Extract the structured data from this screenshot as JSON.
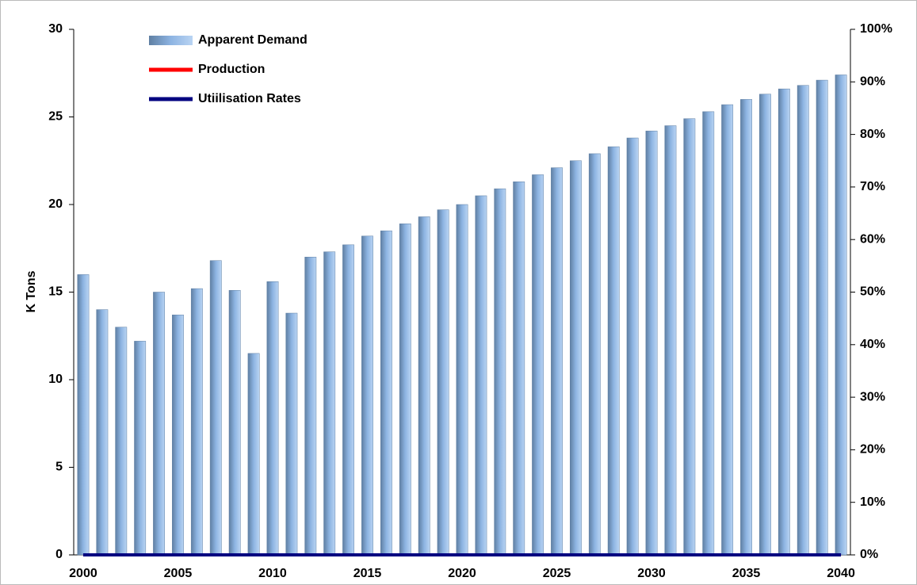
{
  "chart_data": {
    "type": "bar",
    "y_label": "K Tons",
    "x": [
      2000,
      2001,
      2002,
      2003,
      2004,
      2005,
      2006,
      2007,
      2008,
      2009,
      2010,
      2011,
      2012,
      2013,
      2014,
      2015,
      2016,
      2017,
      2018,
      2019,
      2020,
      2021,
      2022,
      2023,
      2024,
      2025,
      2026,
      2027,
      2028,
      2029,
      2030,
      2031,
      2032,
      2033,
      2034,
      2035,
      2036,
      2037,
      2038,
      2039,
      2040
    ],
    "xlim": [
      1999.5,
      2040.5
    ],
    "xticks": [
      2000,
      2005,
      2010,
      2015,
      2020,
      2025,
      2030,
      2035,
      2040
    ],
    "ylim": [
      0,
      30
    ],
    "yticks": [
      0,
      5,
      10,
      15,
      20,
      25,
      30
    ],
    "y2lim": [
      0,
      100
    ],
    "y2ticks": [
      {
        "value": 0,
        "label": "0%"
      },
      {
        "value": 10,
        "label": "10%"
      },
      {
        "value": 20,
        "label": "20%"
      },
      {
        "value": 30,
        "label": "30%"
      },
      {
        "value": 40,
        "label": "40%"
      },
      {
        "value": 50,
        "label": "50%"
      },
      {
        "value": 60,
        "label": "60%"
      },
      {
        "value": 70,
        "label": "70%"
      },
      {
        "value": 80,
        "label": "80%"
      },
      {
        "value": 90,
        "label": "90%"
      },
      {
        "value": 100,
        "label": "100%"
      }
    ],
    "legend": "top-left",
    "series": [
      {
        "name": "Apparent Demand",
        "type": "bar",
        "color": "#8db4e2",
        "values": [
          16.0,
          14.0,
          13.0,
          12.2,
          15.0,
          13.7,
          15.2,
          16.8,
          15.1,
          11.5,
          15.6,
          13.8,
          17.0,
          17.3,
          17.7,
          18.2,
          18.5,
          18.9,
          19.3,
          19.7,
          20.0,
          20.5,
          20.9,
          21.3,
          21.7,
          22.1,
          22.5,
          22.9,
          23.3,
          23.8,
          24.2,
          24.5,
          24.9,
          25.3,
          25.7,
          26.0,
          26.3,
          26.6,
          26.8,
          27.1,
          27.4
        ]
      },
      {
        "name": "Production",
        "type": "line",
        "color": "#ff0000",
        "values": [
          0,
          0,
          0,
          0,
          0,
          0,
          0,
          0,
          0,
          0,
          0,
          0,
          0,
          0,
          0,
          0,
          0,
          0,
          0,
          0,
          0,
          0,
          0,
          0,
          0,
          0,
          0,
          0,
          0,
          0,
          0,
          0,
          0,
          0,
          0,
          0,
          0,
          0,
          0,
          0,
          0
        ]
      },
      {
        "name": "Utiilisation Rates",
        "type": "line",
        "axis": "y2",
        "color": "#000080",
        "values": [
          0,
          0,
          0,
          0,
          0,
          0,
          0,
          0,
          0,
          0,
          0,
          0,
          0,
          0,
          0,
          0,
          0,
          0,
          0,
          0,
          0,
          0,
          0,
          0,
          0,
          0,
          0,
          0,
          0,
          0,
          0,
          0,
          0,
          0,
          0,
          0,
          0,
          0,
          0,
          0,
          0
        ]
      }
    ]
  }
}
